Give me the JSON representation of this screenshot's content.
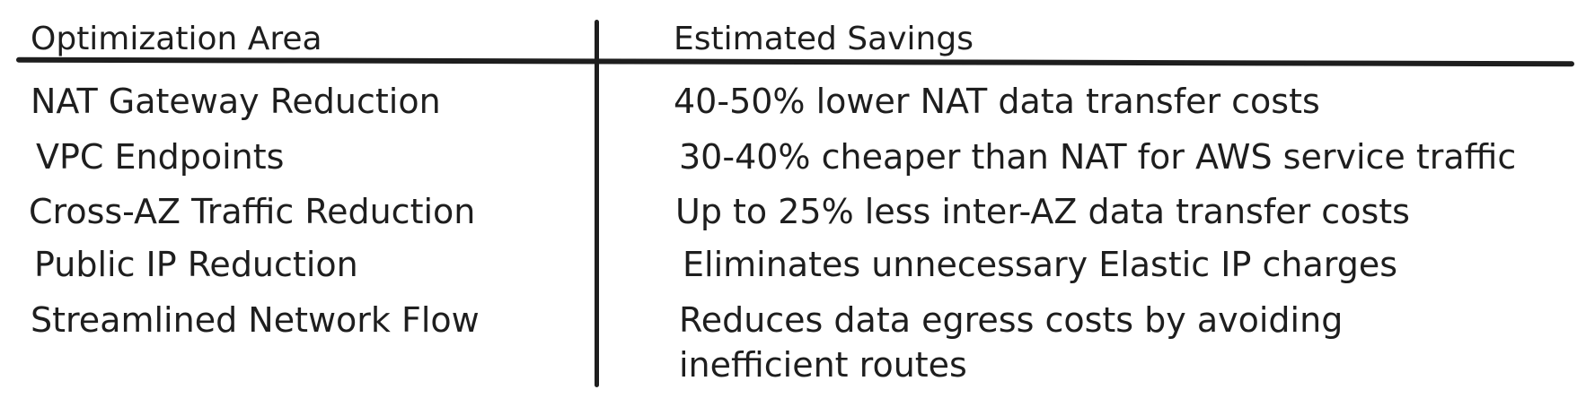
{
  "table": {
    "headers": [
      "Optimization Area",
      "Estimated Savings"
    ],
    "rows": [
      [
        "NAT Gateway Reduction",
        "40-50% lower NAT data transfer costs"
      ],
      [
        "VPC Endpoints",
        "30-40% cheaper than NAT for AWS service traffic"
      ],
      [
        "Cross-AZ Traffic Reduction",
        "Up to 25% less inter-AZ data transfer costs"
      ],
      [
        "Public IP Reduction",
        "Eliminates unnecessary Elastic IP charges"
      ],
      [
        "Streamlined Network Flow",
        "Reduces data egress costs by avoiding inefficient routes"
      ]
    ]
  }
}
